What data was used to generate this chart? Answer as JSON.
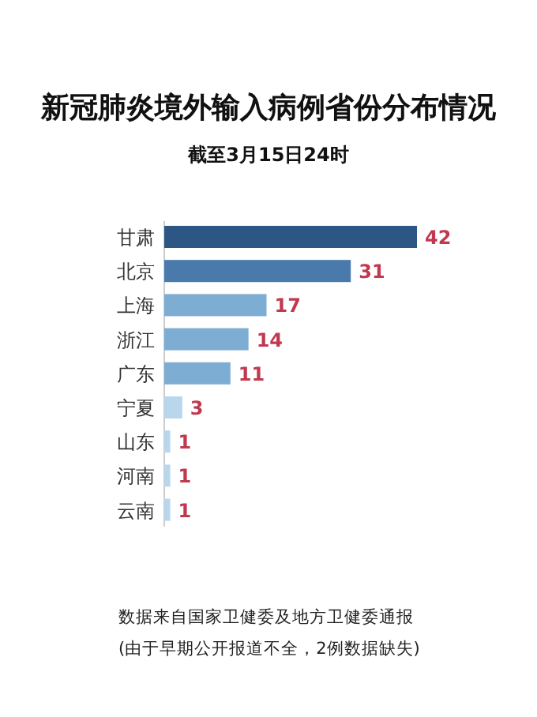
{
  "chart_data": {
    "type": "bar",
    "orientation": "horizontal",
    "title": "新冠肺炎境外输入病例省份分布情况",
    "subtitle": "截至3月15日24时",
    "categories": [
      "甘肃",
      "北京",
      "上海",
      "浙江",
      "广东",
      "宁夏",
      "山东",
      "河南",
      "云南"
    ],
    "values": [
      42,
      31,
      17,
      14,
      11,
      3,
      1,
      1,
      1
    ],
    "colors": [
      "#2c5784",
      "#4a7aab",
      "#7eadd3",
      "#7eadd3",
      "#7eadd3",
      "#b9d7ec",
      "#b9d7ec",
      "#b9d7ec",
      "#b9d7ec"
    ],
    "data_labels": true,
    "annotations": [
      "数据来自国家卫健委及地方卫健委通报",
      "(由于早期公开报道不全，2例数据缺失)"
    ]
  }
}
